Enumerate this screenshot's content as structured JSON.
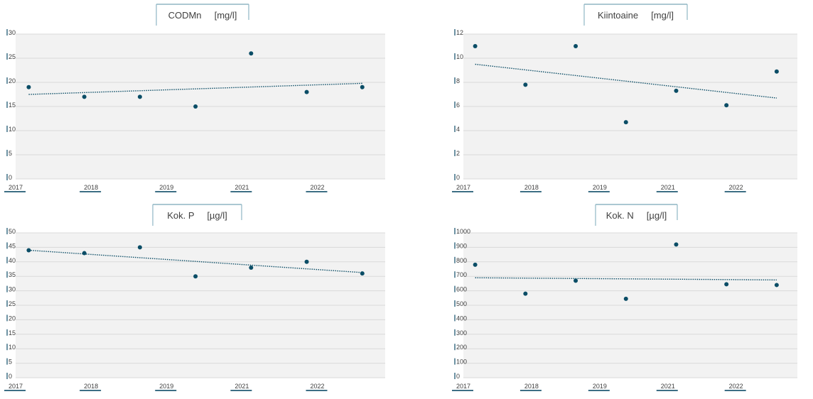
{
  "colors": {
    "plot_bg": "#f2f2f2",
    "grid": "#d9d9d9",
    "marker": "#0b4d66",
    "trend": "#0b4d66",
    "text": "#404040",
    "tick_mark": "#3d6f85",
    "title_border": "#8fb6c4"
  },
  "chart_data": [
    {
      "type": "scatter",
      "title": "CODMn     [mg/l]",
      "xticks": [
        "2017",
        "2018",
        "2019",
        "2021",
        "2022"
      ],
      "xlim": [
        2017,
        2022.65
      ],
      "ylim": [
        0,
        30
      ],
      "yticks": [
        "0",
        "5",
        "10",
        "15",
        "20",
        "25",
        "30"
      ],
      "x": [
        2017.2,
        2018.05,
        2018.9,
        2019.75,
        2020.6,
        2021.45,
        2022.3
      ],
      "y": [
        19,
        17,
        17,
        15,
        26,
        18,
        19
      ],
      "trendline": {
        "style": "dotted",
        "y_start": 17.5,
        "y_end": 19.8
      },
      "grid": true,
      "legend": "none"
    },
    {
      "type": "scatter",
      "title": "Kiintoaine     [mg/l]",
      "xticks": [
        "2017",
        "2018",
        "2019",
        "2021",
        "2022"
      ],
      "xlim": [
        2017,
        2022.65
      ],
      "ylim": [
        0,
        12
      ],
      "yticks": [
        "0",
        "2",
        "4",
        "6",
        "8",
        "10",
        "12"
      ],
      "x": [
        2017.2,
        2018.05,
        2018.9,
        2019.75,
        2020.6,
        2021.45,
        2022.3
      ],
      "y": [
        11,
        7.8,
        11,
        4.7,
        7.3,
        6.1,
        8.9
      ],
      "trendline": {
        "style": "dotted",
        "y_start": 9.5,
        "y_end": 6.7
      },
      "grid": true,
      "legend": "none"
    },
    {
      "type": "scatter",
      "title": "Kok. P     [µg/l]",
      "xticks": [
        "2017",
        "2018",
        "2019",
        "2021",
        "2022"
      ],
      "xlim": [
        2017,
        2022.65
      ],
      "ylim": [
        0,
        50
      ],
      "yticks": [
        "0",
        "5",
        "10",
        "15",
        "20",
        "25",
        "30",
        "35",
        "40",
        "45",
        "50"
      ],
      "x": [
        2017.2,
        2018.05,
        2018.9,
        2019.75,
        2020.6,
        2021.45,
        2022.3
      ],
      "y": [
        44,
        43,
        45,
        35,
        38,
        40,
        36
      ],
      "trendline": {
        "style": "dotted",
        "y_start": 44,
        "y_end": 36.3
      },
      "grid": true,
      "legend": "none"
    },
    {
      "type": "scatter",
      "title": "Kok. N     [µg/l]",
      "xticks": [
        "2017",
        "2018",
        "2019",
        "2021",
        "2022"
      ],
      "xlim": [
        2017,
        2022.65
      ],
      "ylim": [
        0,
        1000
      ],
      "yticks": [
        "0",
        "100",
        "200",
        "300",
        "400",
        "500",
        "600",
        "700",
        "800",
        "900",
        "1000"
      ],
      "x": [
        2017.2,
        2018.05,
        2018.9,
        2019.75,
        2020.6,
        2021.45,
        2022.3
      ],
      "y": [
        780,
        580,
        670,
        545,
        920,
        645,
        640
      ],
      "trendline": {
        "style": "dotted",
        "y_start": 690,
        "y_end": 675
      },
      "grid": true,
      "legend": "none"
    }
  ]
}
